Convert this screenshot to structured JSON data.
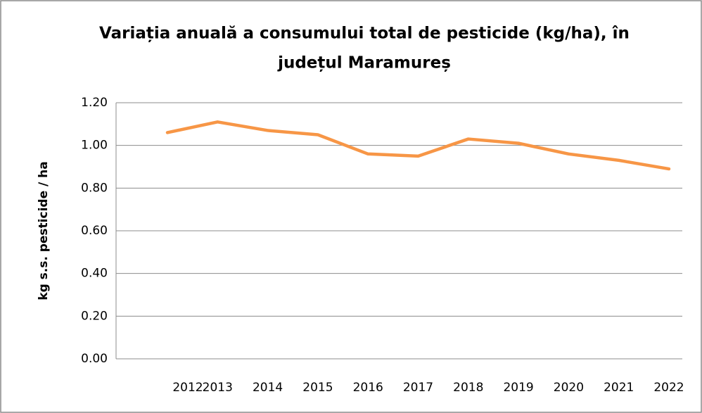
{
  "chart_data": {
    "type": "line",
    "title": [
      "Variația anuală a consumului total de pesticide (kg/ha), în",
      "județul Maramureș"
    ],
    "y_label": "kg s.s. pesticide / ha",
    "categories": [
      "2012",
      "2013",
      "2014",
      "2015",
      "2016",
      "2017",
      "2018",
      "2019",
      "2020",
      "2021",
      "2022"
    ],
    "values": [
      1.06,
      1.11,
      1.07,
      1.05,
      0.96,
      0.95,
      1.03,
      1.01,
      0.96,
      0.93,
      0.89
    ],
    "color": "#f79646",
    "ylim": [
      0,
      1.2
    ],
    "yticks": [
      {
        "value": 0,
        "label": "0.00"
      },
      {
        "value": 0.2,
        "label": "0.20"
      },
      {
        "value": 0.4,
        "label": "0.40"
      },
      {
        "value": 0.6,
        "label": "0.60"
      },
      {
        "value": 0.8,
        "label": "0.80"
      },
      {
        "value": 1,
        "label": "1.00"
      },
      {
        "value": 1.2,
        "label": "1.20"
      }
    ],
    "grid": true
  }
}
